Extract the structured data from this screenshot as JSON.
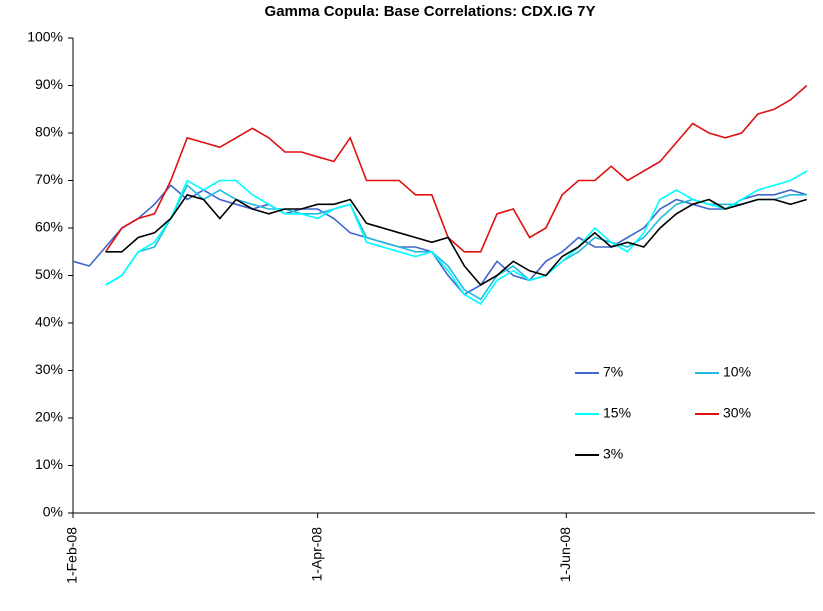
{
  "chart_data": {
    "type": "line",
    "title": "Gamma Copula: Base Correlations: CDX.IG  7Y",
    "x": [
      "2008-02-01",
      "2008-02-05",
      "2008-02-09",
      "2008-02-13",
      "2008-02-17",
      "2008-02-21",
      "2008-02-25",
      "2008-02-29",
      "2008-03-04",
      "2008-03-08",
      "2008-03-12",
      "2008-03-16",
      "2008-03-20",
      "2008-03-24",
      "2008-03-28",
      "2008-04-01",
      "2008-04-05",
      "2008-04-09",
      "2008-04-13",
      "2008-04-17",
      "2008-04-21",
      "2008-04-25",
      "2008-04-29",
      "2008-05-03",
      "2008-05-07",
      "2008-05-11",
      "2008-05-15",
      "2008-05-19",
      "2008-05-23",
      "2008-05-27",
      "2008-05-31",
      "2008-06-04",
      "2008-06-08",
      "2008-06-12",
      "2008-06-16",
      "2008-06-20",
      "2008-06-24",
      "2008-06-28",
      "2008-07-02",
      "2008-07-06",
      "2008-07-10",
      "2008-07-14",
      "2008-07-18",
      "2008-07-22",
      "2008-07-26",
      "2008-07-30"
    ],
    "series": [
      {
        "name": "7%",
        "color": "#4466cc",
        "values": [
          53,
          52,
          56,
          60,
          62,
          65,
          69,
          66,
          68,
          66,
          65,
          64,
          65,
          63,
          64,
          64,
          62,
          59,
          58,
          57,
          56,
          56,
          55,
          50,
          46,
          48,
          53,
          50,
          49,
          53,
          55,
          58,
          56,
          56,
          58,
          60,
          64,
          66,
          65,
          64,
          64,
          66,
          67,
          67,
          68,
          67
        ]
      },
      {
        "name": "10%",
        "color": "#22bbdd",
        "values": [
          null,
          null,
          48,
          50,
          55,
          56,
          62,
          69,
          66,
          68,
          66,
          65,
          64,
          64,
          63,
          63,
          64,
          65,
          58,
          57,
          56,
          55,
          55,
          52,
          47,
          45,
          50,
          52,
          49,
          50,
          53,
          55,
          58,
          57,
          56,
          58,
          62,
          65,
          66,
          65,
          65,
          65,
          66,
          66,
          67,
          67
        ]
      },
      {
        "name": "15%",
        "color": "#00ffff",
        "values": [
          null,
          null,
          48,
          50,
          55,
          57,
          62,
          70,
          68,
          70,
          70,
          67,
          65,
          63,
          63,
          62,
          64,
          65,
          57,
          56,
          55,
          54,
          55,
          51,
          46,
          44,
          49,
          51,
          49,
          50,
          53,
          56,
          60,
          57,
          55,
          59,
          66,
          68,
          66,
          65,
          64,
          66,
          68,
          69,
          70,
          72
        ]
      },
      {
        "name": "30%",
        "color": "#dd1111",
        "values": [
          null,
          null,
          55,
          60,
          62,
          63,
          70,
          79,
          78,
          77,
          79,
          81,
          79,
          76,
          76,
          75,
          74,
          79,
          70,
          70,
          70,
          67,
          67,
          58,
          55,
          55,
          63,
          64,
          58,
          60,
          67,
          70,
          70,
          73,
          70,
          72,
          74,
          78,
          82,
          80,
          79,
          80,
          84,
          85,
          87,
          90
        ]
      },
      {
        "name": "3%",
        "color": "#000000",
        "values": [
          null,
          null,
          55,
          55,
          58,
          59,
          62,
          67,
          66,
          62,
          66,
          64,
          63,
          64,
          64,
          65,
          65,
          66,
          61,
          60,
          59,
          58,
          57,
          58,
          52,
          48,
          50,
          53,
          51,
          50,
          54,
          56,
          59,
          56,
          57,
          56,
          60,
          63,
          65,
          66,
          64,
          65,
          66,
          66,
          65,
          66
        ]
      }
    ],
    "xlim": [
      "2008-02-01",
      "2008-08-01"
    ],
    "xticks": [
      {
        "value": "2008-02-01",
        "label": "1-Feb-08"
      },
      {
        "value": "2008-04-01",
        "label": "1-Apr-08"
      },
      {
        "value": "2008-06-01",
        "label": "1-Jun-08"
      }
    ],
    "ylim": [
      0,
      100
    ],
    "yticks": [
      {
        "value": 0,
        "label": "0%"
      },
      {
        "value": 10,
        "label": "10%"
      },
      {
        "value": 20,
        "label": "20%"
      },
      {
        "value": 30,
        "label": "30%"
      },
      {
        "value": 40,
        "label": "40%"
      },
      {
        "value": 50,
        "label": "50%"
      },
      {
        "value": 60,
        "label": "60%"
      },
      {
        "value": 70,
        "label": "70%"
      },
      {
        "value": 80,
        "label": "80%"
      },
      {
        "value": 90,
        "label": "90%"
      },
      {
        "value": 100,
        "label": "100%"
      }
    ],
    "grid": false
  }
}
